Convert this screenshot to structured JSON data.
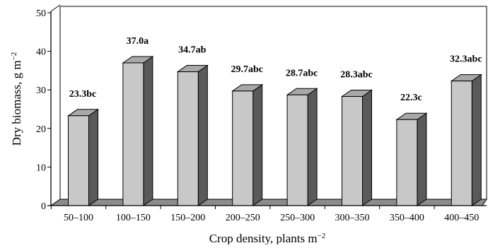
{
  "chart_data": {
    "type": "bar",
    "title": "",
    "xlabel": "Crop density, plants m",
    "xlabel_sup": "−2",
    "ylabel": "Dry biomass, g m",
    "ylabel_sup": "−2",
    "ylim": [
      0,
      50
    ],
    "yticks": [
      0,
      10,
      20,
      30,
      40,
      50
    ],
    "grid": false,
    "style": "3d",
    "colors": {
      "bar_front": "#c8c8c8",
      "bar_top": "#a8a8a8",
      "bar_side": "#5a5a5a",
      "floor": "#8c8c8c",
      "wall": "#ffffff"
    },
    "categories": [
      "50–100",
      "100–150",
      "150–200",
      "200–250",
      "250–300",
      "300–350",
      "350–400",
      "400–450"
    ],
    "values": [
      23.3,
      37.0,
      34.7,
      29.7,
      28.7,
      28.3,
      22.3,
      32.3
    ],
    "data_labels": [
      "23.3bc",
      "37.0a",
      "34.7ab",
      "29.7abc",
      "28.7abc",
      "28.3abc",
      "22.3c",
      "32.3abc"
    ]
  }
}
